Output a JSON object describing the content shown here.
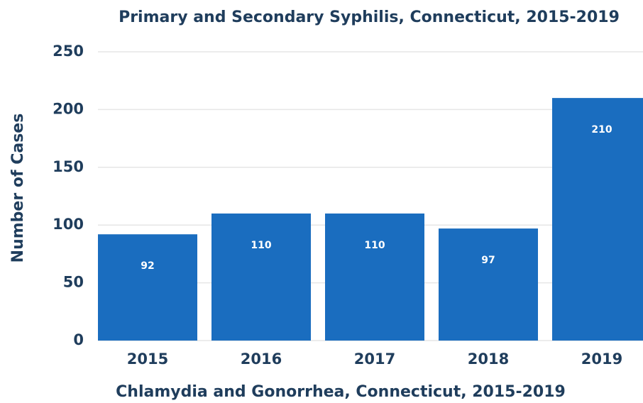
{
  "chart_data": {
    "type": "bar",
    "title": "Primary and Secondary Syphilis, Connecticut, 2015-2019",
    "y_label": "Number of Cases",
    "categories": [
      "2015",
      "2016",
      "2017",
      "2018",
      "2019"
    ],
    "values": [
      92,
      110,
      110,
      97,
      210
    ],
    "color": "#1a6dbf",
    "ylim": [
      0,
      250
    ],
    "yticks": [
      0,
      50,
      100,
      150,
      200,
      250
    ],
    "grid": true,
    "annotation": "Chlamydia and Gonorrhea, Connecticut, 2015-2019"
  }
}
